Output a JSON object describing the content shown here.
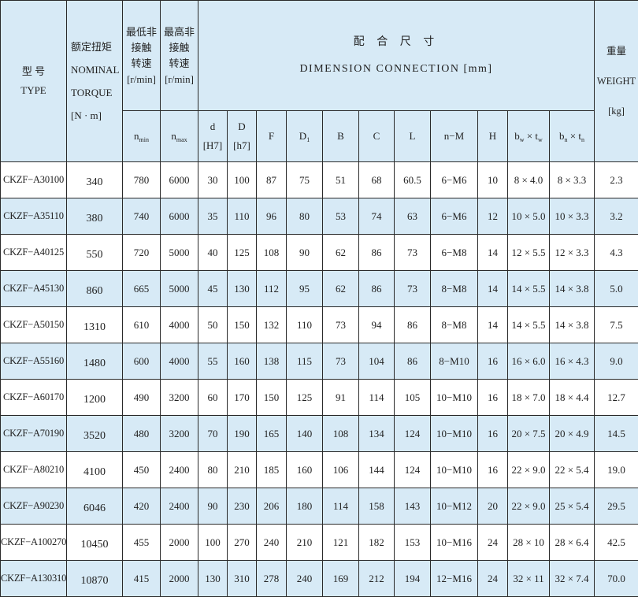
{
  "header": {
    "type_cn": "型 号",
    "type_en": "TYPE",
    "torque_cn": "额定扭矩",
    "torque_en1": "NOMINAL",
    "torque_en2": "TORQUE",
    "torque_unit": "[N · m]",
    "nmin_l1": "最低非",
    "nmin_l2": "接触",
    "nmin_l3": "转速",
    "nmin_unit": "[r/min]",
    "nmax_l1": "最高非",
    "nmax_l2": "接触",
    "nmax_l3": "转速",
    "nmax_unit": "[r/min]",
    "dim_cn": "配 合 尺 寸",
    "dim_en": "DIMENSION CONNECTION [mm]",
    "weight_cn": "重量",
    "weight_en": "WEIGHT",
    "weight_unit": "[kg]",
    "sub": {
      "nmin": {
        "base": "n",
        "sub": "min"
      },
      "nmax": {
        "base": "n",
        "sub": "max"
      },
      "d": {
        "base": "d",
        "fit": "[H7]"
      },
      "D": {
        "base": "D",
        "fit": "[h7]"
      },
      "F": "F",
      "D1": {
        "base": "D",
        "sub": "1"
      },
      "B": "B",
      "C": "C",
      "L": "L",
      "nM": "n−M",
      "H": "H",
      "bwtw": {
        "b": "b",
        "bsub": "w",
        "x": " × ",
        "t": "t",
        "tsub": "w"
      },
      "bntn": {
        "b": "b",
        "bsub": "n",
        "x": " × ",
        "t": "t",
        "tsub": "n"
      }
    }
  },
  "colors": {
    "header_bg": "#d7eaf6",
    "alt_row_bg": "#d7eaf6",
    "border": "#2a2a2a"
  },
  "rows": [
    [
      "CKZF−A30100",
      "340",
      "780",
      "6000",
      "30",
      "100",
      "87",
      "75",
      "51",
      "68",
      "60.5",
      "6−M6",
      "10",
      "8 × 4.0",
      "8 × 3.3",
      "2.3"
    ],
    [
      "CKZF−A35110",
      "380",
      "740",
      "6000",
      "35",
      "110",
      "96",
      "80",
      "53",
      "74",
      "63",
      "6−M6",
      "12",
      "10 × 5.0",
      "10 × 3.3",
      "3.2"
    ],
    [
      "CKZF−A40125",
      "550",
      "720",
      "5000",
      "40",
      "125",
      "108",
      "90",
      "62",
      "86",
      "73",
      "6−M8",
      "14",
      "12 × 5.5",
      "12 × 3.3",
      "4.3"
    ],
    [
      "CKZF−A45130",
      "860",
      "665",
      "5000",
      "45",
      "130",
      "112",
      "95",
      "62",
      "86",
      "73",
      "8−M8",
      "14",
      "14 × 5.5",
      "14 × 3.8",
      "5.0"
    ],
    [
      "CKZF−A50150",
      "1310",
      "610",
      "4000",
      "50",
      "150",
      "132",
      "110",
      "73",
      "94",
      "86",
      "8−M8",
      "14",
      "14 × 5.5",
      "14 × 3.8",
      "7.5"
    ],
    [
      "CKZF−A55160",
      "1480",
      "600",
      "4000",
      "55",
      "160",
      "138",
      "115",
      "73",
      "104",
      "86",
      "8−M10",
      "16",
      "16 × 6.0",
      "16 × 4.3",
      "9.0"
    ],
    [
      "CKZF−A60170",
      "1200",
      "490",
      "3200",
      "60",
      "170",
      "150",
      "125",
      "91",
      "114",
      "105",
      "10−M10",
      "16",
      "18 × 7.0",
      "18 × 4.4",
      "12.7"
    ],
    [
      "CKZF−A70190",
      "3520",
      "480",
      "3200",
      "70",
      "190",
      "165",
      "140",
      "108",
      "134",
      "124",
      "10−M10",
      "16",
      "20 × 7.5",
      "20 × 4.9",
      "14.5"
    ],
    [
      "CKZF−A80210",
      "4100",
      "450",
      "2400",
      "80",
      "210",
      "185",
      "160",
      "106",
      "144",
      "124",
      "10−M10",
      "16",
      "22 × 9.0",
      "22 × 5.4",
      "19.0"
    ],
    [
      "CKZF−A90230",
      "6046",
      "420",
      "2400",
      "90",
      "230",
      "206",
      "180",
      "114",
      "158",
      "143",
      "10−M12",
      "20",
      "22 × 9.0",
      "25 × 5.4",
      "29.5"
    ],
    [
      "CKZF−A100270",
      "10450",
      "455",
      "2000",
      "100",
      "270",
      "240",
      "210",
      "121",
      "182",
      "153",
      "10−M16",
      "24",
      "28 × 10",
      "28 × 6.4",
      "42.5"
    ],
    [
      "CKZF−A130310",
      "10870",
      "415",
      "2000",
      "130",
      "310",
      "278",
      "240",
      "169",
      "212",
      "194",
      "12−M16",
      "24",
      "32 × 11",
      "32 × 7.4",
      "70.0"
    ]
  ]
}
